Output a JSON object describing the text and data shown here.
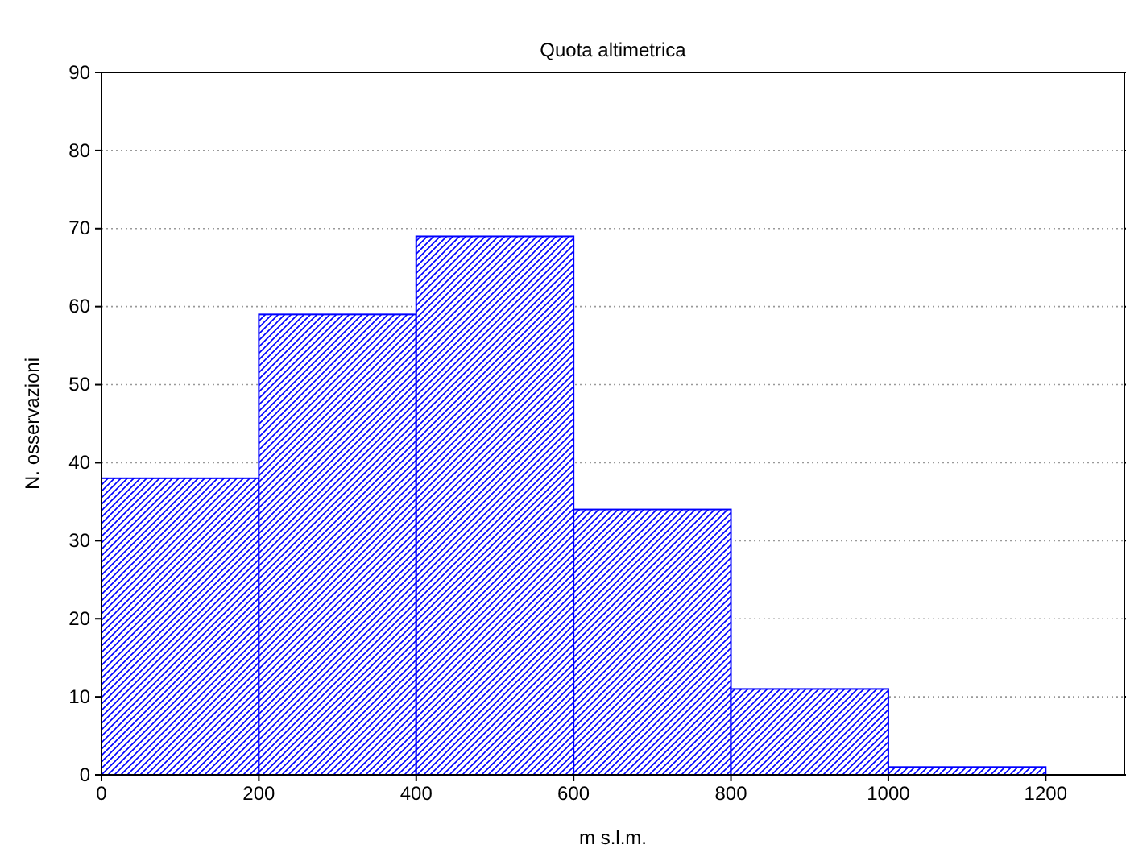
{
  "chart_data": {
    "type": "histogram",
    "title": "Quota altimetrica",
    "xlabel": "m s.l.m.",
    "ylabel": "N. osservazioni",
    "bins": [
      0,
      200,
      400,
      600,
      800,
      1000,
      1200
    ],
    "values": [
      38,
      59,
      69,
      34,
      11,
      1
    ],
    "color": "#0000ff",
    "xlim": [
      0,
      1300
    ],
    "xticks": [
      0,
      200,
      400,
      600,
      800,
      1000,
      1200
    ],
    "ylim": [
      0,
      90
    ],
    "yticks": [
      0,
      10,
      20,
      30,
      40,
      50,
      60,
      70,
      80,
      90
    ],
    "grid": "y"
  }
}
